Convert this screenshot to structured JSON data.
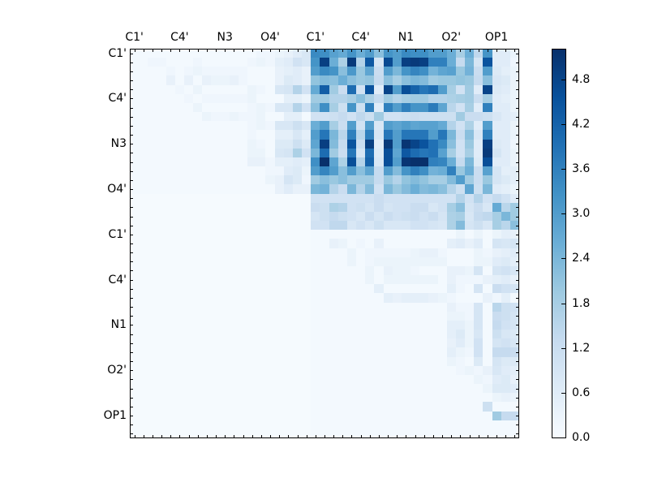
{
  "chart_data": {
    "type": "heatmap",
    "title": "",
    "xlabel": "",
    "ylabel": "",
    "n": 43,
    "x_tick_labels": [
      "C1'",
      "C4'",
      "N3",
      "O4'",
      "C1'",
      "C4'",
      "N1",
      "O2'",
      "OP1"
    ],
    "y_tick_labels": [
      "C1'",
      "C4'",
      "N3",
      "O4'",
      "C1'",
      "C4'",
      "N1",
      "O2'",
      "OP1"
    ],
    "label_positions": [
      0,
      5,
      10,
      15,
      20,
      25,
      30,
      35,
      40
    ],
    "x_axis_position": "top",
    "colormap": "Blues",
    "vmin": 0.0,
    "vmax": 5.2,
    "colorbar_ticks": [
      "0.0",
      "0.6",
      "1.2",
      "1.8",
      "2.4",
      "3.0",
      "3.6",
      "4.2",
      "4.8"
    ],
    "colorbar_tick_values": [
      0.0,
      0.6,
      1.2,
      1.8,
      2.4,
      3.0,
      3.6,
      4.2,
      4.8
    ],
    "grid": false,
    "matrix_rows_cols_20_42": [
      [
        3.4,
        3.3,
        2.9,
        2.7,
        3.2,
        2.6,
        3.0,
        2.2,
        3.2,
        3.0,
        3.4,
        3.3,
        3.3,
        3.0,
        3.0,
        2.6,
        1.8,
        2.6,
        1.4,
        3.2,
        0.6,
        0.6,
        0.3
      ],
      [
        3.2,
        4.9,
        2.6,
        1.7,
        5.0,
        1.6,
        4.4,
        0.9,
        4.7,
        3.0,
        4.9,
        5.0,
        4.9,
        3.6,
        3.6,
        2.6,
        1.3,
        2.4,
        0.9,
        4.5,
        0.6,
        0.6,
        0.2
      ],
      [
        3.0,
        3.4,
        3.2,
        2.2,
        3.1,
        2.0,
        2.8,
        1.2,
        3.0,
        2.4,
        3.2,
        3.5,
        3.3,
        2.5,
        2.8,
        2.9,
        2.0,
        2.5,
        1.2,
        3.0,
        0.7,
        0.5,
        0.3
      ],
      [
        2.1,
        2.3,
        2.2,
        2.6,
        2.2,
        2.0,
        2.1,
        1.3,
        2.2,
        1.8,
        2.2,
        2.4,
        2.3,
        1.9,
        2.0,
        2.0,
        2.1,
        2.0,
        1.3,
        2.2,
        0.8,
        0.7,
        0.3
      ],
      [
        2.7,
        4.3,
        1.9,
        1.2,
        4.0,
        1.0,
        4.5,
        0.6,
        4.8,
        3.0,
        4.6,
        4.2,
        3.8,
        4.0,
        3.0,
        1.8,
        1.0,
        1.9,
        0.6,
        4.8,
        0.7,
        0.6,
        0.3
      ],
      [
        1.9,
        1.9,
        1.6,
        1.6,
        1.8,
        2.2,
        1.7,
        1.3,
        1.9,
        1.6,
        1.8,
        1.9,
        1.9,
        1.6,
        1.6,
        1.7,
        1.8,
        1.9,
        1.2,
        1.8,
        0.6,
        0.5,
        0.3
      ],
      [
        2.2,
        3.3,
        1.8,
        1.1,
        3.2,
        1.1,
        3.6,
        0.6,
        3.6,
        3.0,
        3.6,
        3.2,
        3.2,
        3.7,
        2.8,
        1.5,
        1.0,
        1.8,
        0.6,
        3.6,
        0.6,
        0.6,
        0.3
      ],
      [
        1.0,
        1.0,
        1.1,
        1.3,
        1.0,
        1.4,
        1.1,
        1.9,
        1.0,
        1.0,
        1.1,
        1.2,
        1.1,
        1.1,
        1.1,
        1.1,
        1.9,
        1.2,
        1.2,
        1.1,
        0.8,
        0.6,
        0.5
      ],
      [
        2.6,
        3.0,
        1.8,
        1.2,
        3.0,
        1.0,
        3.0,
        0.8,
        3.0,
        2.8,
        3.0,
        2.8,
        2.9,
        2.9,
        2.7,
        1.6,
        1.0,
        1.7,
        0.6,
        3.0,
        0.6,
        0.6,
        0.3
      ],
      [
        3.0,
        3.8,
        2.4,
        1.5,
        3.6,
        1.5,
        3.6,
        0.9,
        3.8,
        3.0,
        3.8,
        3.8,
        3.8,
        3.0,
        3.8,
        2.4,
        1.2,
        2.2,
        0.8,
        3.6,
        0.6,
        0.6,
        0.3
      ],
      [
        2.8,
        4.9,
        2.3,
        1.3,
        4.5,
        1.2,
        4.9,
        0.6,
        5.0,
        3.0,
        5.1,
        4.8,
        4.5,
        3.9,
        3.4,
        2.2,
        1.0,
        2.0,
        0.6,
        4.9,
        0.7,
        0.6,
        0.2
      ],
      [
        2.4,
        4.0,
        1.9,
        1.2,
        3.8,
        0.9,
        4.0,
        0.7,
        4.6,
        2.8,
        4.4,
        4.0,
        3.8,
        3.9,
        2.9,
        1.8,
        1.0,
        1.8,
        0.6,
        5.0,
        0.9,
        0.6,
        0.3
      ],
      [
        3.3,
        5.2,
        2.8,
        1.7,
        4.6,
        1.6,
        4.2,
        0.8,
        4.6,
        3.0,
        5.1,
        5.2,
        5.2,
        3.6,
        3.5,
        2.6,
        1.3,
        2.4,
        0.7,
        4.6,
        0.6,
        0.6,
        0.3
      ],
      [
        3.0,
        3.5,
        3.0,
        2.2,
        3.0,
        2.2,
        2.8,
        1.3,
        3.0,
        2.3,
        3.2,
        3.6,
        3.3,
        2.5,
        2.6,
        3.6,
        2.0,
        2.6,
        1.2,
        2.9,
        0.9,
        0.5,
        0.5
      ],
      [
        1.9,
        2.2,
        2.0,
        2.2,
        1.9,
        1.9,
        1.9,
        1.3,
        2.0,
        1.6,
        2.1,
        2.3,
        2.1,
        1.8,
        1.8,
        2.3,
        3.0,
        1.9,
        1.2,
        2.0,
        0.9,
        0.7,
        0.5
      ],
      [
        2.4,
        2.5,
        1.6,
        1.2,
        2.4,
        1.6,
        2.3,
        1.0,
        2.4,
        2.0,
        2.3,
        2.6,
        2.3,
        2.4,
        2.2,
        1.6,
        1.1,
        2.8,
        1.1,
        2.4,
        0.6,
        0.5,
        0.3
      ],
      [
        1.0,
        1.0,
        1.0,
        1.0,
        1.0,
        1.0,
        1.0,
        1.2,
        1.0,
        1.0,
        1.0,
        1.0,
        1.0,
        1.0,
        1.0,
        1.0,
        1.6,
        1.0,
        1.6,
        1.0,
        1.3,
        1.0,
        0.6
      ],
      [
        1.2,
        1.1,
        1.7,
        1.6,
        1.0,
        1.1,
        0.9,
        1.2,
        0.9,
        1.0,
        1.0,
        1.2,
        1.2,
        0.8,
        1.0,
        1.8,
        2.2,
        0.9,
        1.2,
        0.8,
        2.7,
        1.5,
        1.9
      ],
      [
        0.9,
        1.1,
        1.3,
        1.1,
        1.0,
        0.8,
        1.2,
        0.9,
        1.2,
        1.0,
        1.1,
        1.2,
        1.0,
        1.2,
        0.9,
        1.7,
        1.8,
        0.8,
        1.3,
        1.4,
        1.8,
        2.4,
        1.9
      ],
      [
        1.0,
        1.0,
        1.4,
        1.4,
        0.8,
        1.0,
        0.8,
        1.1,
        0.8,
        0.8,
        0.8,
        1.0,
        1.0,
        0.9,
        0.8,
        1.7,
        2.3,
        0.9,
        1.1,
        0.8,
        1.8,
        1.5,
        2.2
      ],
      [
        0.1,
        0.1,
        0.1,
        0.1,
        0.1,
        0.1,
        0.1,
        0.1,
        0.1,
        0.1,
        0.1,
        0.1,
        0.1,
        0.1,
        0.1,
        0.1,
        0.3,
        0.1,
        0.3,
        0.1,
        0.3,
        0.5,
        0.4
      ],
      [
        0.1,
        0.1,
        0.4,
        0.3,
        0.1,
        0.2,
        0.1,
        0.4,
        0.1,
        0.1,
        0.1,
        0.1,
        0.1,
        0.1,
        0.1,
        0.5,
        0.6,
        0.4,
        0.6,
        0.1,
        0.9,
        0.8,
        0.9
      ],
      [
        0.1,
        0.1,
        0.1,
        0.1,
        0.3,
        0.1,
        0.2,
        0.2,
        0.2,
        0.2,
        0.2,
        0.3,
        0.4,
        0.4,
        0.2,
        0.1,
        0.1,
        0.1,
        0.3,
        0.2,
        0.4,
        0.5,
        0.6
      ],
      [
        0.1,
        0.1,
        0.1,
        0.1,
        0.3,
        0.1,
        0.2,
        0.3,
        0.3,
        0.3,
        0.3,
        0.3,
        0.3,
        0.3,
        0.3,
        0.1,
        0.1,
        0.1,
        0.3,
        0.3,
        0.6,
        0.7,
        0.5
      ],
      [
        0.1,
        0.1,
        0.1,
        0.1,
        0.1,
        0.1,
        0.3,
        0.1,
        0.4,
        0.3,
        0.3,
        0.2,
        0.1,
        0.1,
        0.1,
        0.4,
        0.4,
        0.3,
        0.9,
        0.1,
        0.9,
        1.0,
        0.8
      ],
      [
        0.1,
        0.1,
        0.1,
        0.1,
        0.1,
        0.1,
        0.3,
        0.1,
        0.3,
        0.3,
        0.3,
        0.3,
        0.3,
        0.3,
        0.1,
        0.4,
        0.2,
        0.2,
        0.2,
        0.4,
        0.5,
        0.6,
        0.4
      ],
      [
        0.1,
        0.1,
        0.1,
        0.1,
        0.1,
        0.1,
        0.1,
        0.5,
        0.1,
        0.1,
        0.1,
        0.1,
        0.1,
        0.1,
        0.1,
        0.5,
        0.2,
        0.1,
        0.9,
        0.1,
        1.2,
        1.0,
        0.9
      ],
      [
        0.1,
        0.1,
        0.1,
        0.1,
        0.1,
        0.1,
        0.1,
        0.1,
        0.5,
        0.4,
        0.5,
        0.5,
        0.5,
        0.4,
        0.3,
        0.2,
        0.1,
        0.1,
        0.1,
        0.4,
        0.2,
        0.5,
        0.1
      ],
      [
        0.1,
        0.1,
        0.1,
        0.1,
        0.1,
        0.1,
        0.1,
        0.1,
        0.1,
        0.1,
        0.1,
        0.1,
        0.1,
        0.1,
        0.1,
        0.4,
        0.2,
        0.2,
        0.9,
        0.1,
        1.5,
        1.1,
        1.0
      ],
      [
        0.1,
        0.1,
        0.1,
        0.1,
        0.1,
        0.1,
        0.1,
        0.1,
        0.1,
        0.1,
        0.1,
        0.1,
        0.1,
        0.1,
        0.1,
        0.3,
        0.3,
        0.2,
        0.9,
        0.1,
        1.2,
        1.1,
        0.9
      ],
      [
        0.1,
        0.1,
        0.1,
        0.1,
        0.1,
        0.1,
        0.1,
        0.1,
        0.1,
        0.1,
        0.1,
        0.1,
        0.1,
        0.1,
        0.1,
        0.5,
        0.5,
        0.3,
        0.9,
        0.1,
        1.3,
        1.0,
        0.9
      ],
      [
        0.1,
        0.1,
        0.1,
        0.1,
        0.1,
        0.1,
        0.1,
        0.1,
        0.1,
        0.1,
        0.1,
        0.1,
        0.1,
        0.1,
        0.1,
        0.5,
        0.7,
        0.3,
        0.8,
        0.1,
        1.1,
        0.8,
        0.7
      ],
      [
        0.1,
        0.1,
        0.1,
        0.1,
        0.1,
        0.1,
        0.1,
        0.1,
        0.1,
        0.1,
        0.1,
        0.1,
        0.1,
        0.1,
        0.1,
        0.4,
        0.6,
        0.3,
        1.0,
        0.1,
        0.9,
        1.0,
        0.8
      ],
      [
        0.1,
        0.1,
        0.1,
        0.1,
        0.1,
        0.1,
        0.1,
        0.1,
        0.1,
        0.1,
        0.1,
        0.1,
        0.1,
        0.1,
        0.1,
        0.5,
        0.3,
        0.2,
        1.0,
        0.1,
        1.3,
        1.3,
        1.2
      ],
      [
        0.1,
        0.1,
        0.1,
        0.1,
        0.1,
        0.1,
        0.1,
        0.1,
        0.1,
        0.1,
        0.1,
        0.1,
        0.1,
        0.1,
        0.1,
        0.3,
        0.2,
        0.1,
        0.7,
        0.1,
        0.9,
        0.7,
        0.7
      ],
      [
        0.1,
        0.1,
        0.1,
        0.1,
        0.1,
        0.1,
        0.1,
        0.1,
        0.1,
        0.1,
        0.1,
        0.1,
        0.1,
        0.1,
        0.1,
        0.1,
        0.2,
        0.3,
        0.2,
        0.4,
        0.8,
        0.6,
        0.5
      ],
      [
        0.1,
        0.1,
        0.1,
        0.1,
        0.1,
        0.1,
        0.1,
        0.1,
        0.1,
        0.1,
        0.1,
        0.1,
        0.1,
        0.1,
        0.1,
        0.1,
        0.1,
        0.1,
        0.3,
        0.2,
        0.6,
        0.7,
        0.4
      ],
      [
        0.1,
        0.1,
        0.1,
        0.1,
        0.1,
        0.1,
        0.1,
        0.1,
        0.1,
        0.1,
        0.1,
        0.1,
        0.1,
        0.1,
        0.1,
        0.1,
        0.1,
        0.1,
        0.1,
        0.3,
        0.7,
        0.7,
        0.6
      ],
      [
        0.1,
        0.1,
        0.1,
        0.1,
        0.1,
        0.1,
        0.1,
        0.1,
        0.1,
        0.1,
        0.1,
        0.1,
        0.1,
        0.1,
        0.1,
        0.1,
        0.1,
        0.1,
        0.1,
        0.1,
        0.3,
        0.4,
        0.3
      ],
      [
        0.1,
        0.1,
        0.1,
        0.1,
        0.1,
        0.1,
        0.1,
        0.1,
        0.1,
        0.1,
        0.1,
        0.1,
        0.1,
        0.1,
        0.1,
        0.1,
        0.1,
        0.1,
        0.1,
        1.1,
        0.1,
        0.1,
        0.1
      ],
      [
        0.1,
        0.1,
        0.1,
        0.1,
        0.1,
        0.1,
        0.1,
        0.1,
        0.1,
        0.1,
        0.1,
        0.1,
        0.1,
        0.1,
        0.1,
        0.1,
        0.1,
        0.1,
        0.1,
        0.1,
        1.9,
        1.3,
        1.3
      ],
      [
        0.1,
        0.1,
        0.1,
        0.1,
        0.1,
        0.1,
        0.1,
        0.1,
        0.1,
        0.1,
        0.1,
        0.1,
        0.1,
        0.1,
        0.1,
        0.1,
        0.1,
        0.1,
        0.1,
        0.1,
        0.1,
        0.1,
        0.1
      ],
      [
        0.1,
        0.1,
        0.1,
        0.1,
        0.1,
        0.1,
        0.1,
        0.1,
        0.1,
        0.1,
        0.1,
        0.1,
        0.1,
        0.1,
        0.1,
        0.1,
        0.1,
        0.1,
        0.1,
        0.1,
        0.1,
        0.1,
        0.1
      ]
    ],
    "matrix_rows_cols_0_19": [
      [
        0.1,
        0.1,
        0.1,
        0.1,
        0.1,
        0.1,
        0.1,
        0.1,
        0.1,
        0.1,
        0.1,
        0.1,
        0.1,
        0.1,
        0.2,
        0.2,
        0.3,
        0.4,
        0.6,
        0.8
      ],
      [
        0.1,
        0.1,
        0.2,
        0.2,
        0.1,
        0.1,
        0.1,
        0.2,
        0.1,
        0.1,
        0.1,
        0.1,
        0.1,
        0.2,
        0.3,
        0.2,
        0.5,
        0.6,
        1.0,
        0.8
      ],
      [
        0.1,
        0.1,
        0.1,
        0.1,
        0.2,
        0.1,
        0.2,
        0.3,
        0.2,
        0.2,
        0.2,
        0.2,
        0.2,
        0.1,
        0.1,
        0.1,
        0.4,
        0.5,
        0.6,
        0.4
      ],
      [
        0.1,
        0.1,
        0.1,
        0.1,
        0.4,
        0.1,
        0.4,
        0.1,
        0.4,
        0.3,
        0.3,
        0.4,
        0.2,
        0.1,
        0.1,
        0.1,
        0.4,
        0.7,
        0.6,
        0.4
      ],
      [
        0.1,
        0.1,
        0.1,
        0.1,
        0.1,
        0.2,
        0.1,
        0.3,
        0.1,
        0.1,
        0.1,
        0.1,
        0.1,
        0.3,
        0.2,
        0.1,
        0.8,
        0.9,
        1.6,
        1.0
      ],
      [
        0.1,
        0.1,
        0.1,
        0.1,
        0.1,
        0.1,
        0.2,
        0.1,
        0.2,
        0.2,
        0.2,
        0.2,
        0.2,
        0.3,
        0.1,
        0.1,
        0.1,
        0.5,
        0.5,
        0.3
      ],
      [
        0.1,
        0.1,
        0.1,
        0.1,
        0.1,
        0.1,
        0.1,
        0.3,
        0.1,
        0.1,
        0.1,
        0.1,
        0.1,
        0.2,
        0.3,
        0.2,
        0.8,
        0.8,
        1.6,
        1.0
      ],
      [
        0.1,
        0.1,
        0.1,
        0.1,
        0.1,
        0.1,
        0.1,
        0.1,
        0.3,
        0.2,
        0.2,
        0.3,
        0.2,
        0.2,
        0.3,
        0.1,
        0.1,
        0.5,
        0.5,
        0.1
      ],
      [
        0.1,
        0.1,
        0.1,
        0.1,
        0.1,
        0.1,
        0.1,
        0.1,
        0.1,
        0.1,
        0.1,
        0.1,
        0.1,
        0.2,
        0.3,
        0.2,
        0.8,
        0.8,
        1.1,
        0.8
      ],
      [
        0.1,
        0.1,
        0.1,
        0.1,
        0.1,
        0.1,
        0.1,
        0.1,
        0.1,
        0.1,
        0.1,
        0.1,
        0.1,
        0.2,
        0.1,
        0.1,
        0.5,
        0.5,
        0.8,
        0.5
      ],
      [
        0.1,
        0.1,
        0.1,
        0.1,
        0.1,
        0.1,
        0.1,
        0.1,
        0.1,
        0.1,
        0.1,
        0.1,
        0.1,
        0.3,
        0.2,
        0.1,
        0.7,
        0.7,
        1.1,
        0.7
      ],
      [
        0.1,
        0.1,
        0.1,
        0.1,
        0.1,
        0.1,
        0.1,
        0.1,
        0.1,
        0.1,
        0.1,
        0.1,
        0.1,
        0.3,
        0.3,
        0.1,
        0.8,
        0.9,
        1.7,
        1.0
      ],
      [
        0.1,
        0.1,
        0.1,
        0.1,
        0.1,
        0.1,
        0.1,
        0.1,
        0.1,
        0.1,
        0.1,
        0.1,
        0.1,
        0.4,
        0.4,
        0.2,
        0.5,
        0.5,
        0.6,
        0.5
      ],
      [
        0.1,
        0.1,
        0.1,
        0.1,
        0.1,
        0.1,
        0.1,
        0.1,
        0.1,
        0.1,
        0.1,
        0.1,
        0.1,
        0.1,
        0.1,
        0.2,
        0.2,
        0.6,
        0.7,
        0.3
      ],
      [
        0.1,
        0.1,
        0.1,
        0.1,
        0.1,
        0.1,
        0.1,
        0.1,
        0.1,
        0.1,
        0.1,
        0.1,
        0.1,
        0.1,
        0.1,
        0.3,
        0.4,
        0.9,
        0.7,
        0.2
      ],
      [
        0.1,
        0.1,
        0.1,
        0.1,
        0.1,
        0.1,
        0.1,
        0.1,
        0.1,
        0.1,
        0.1,
        0.1,
        0.1,
        0.1,
        0.1,
        0.1,
        0.4,
        0.6,
        0.4,
        0.4
      ]
    ],
    "legend_position": "right colorbar"
  }
}
